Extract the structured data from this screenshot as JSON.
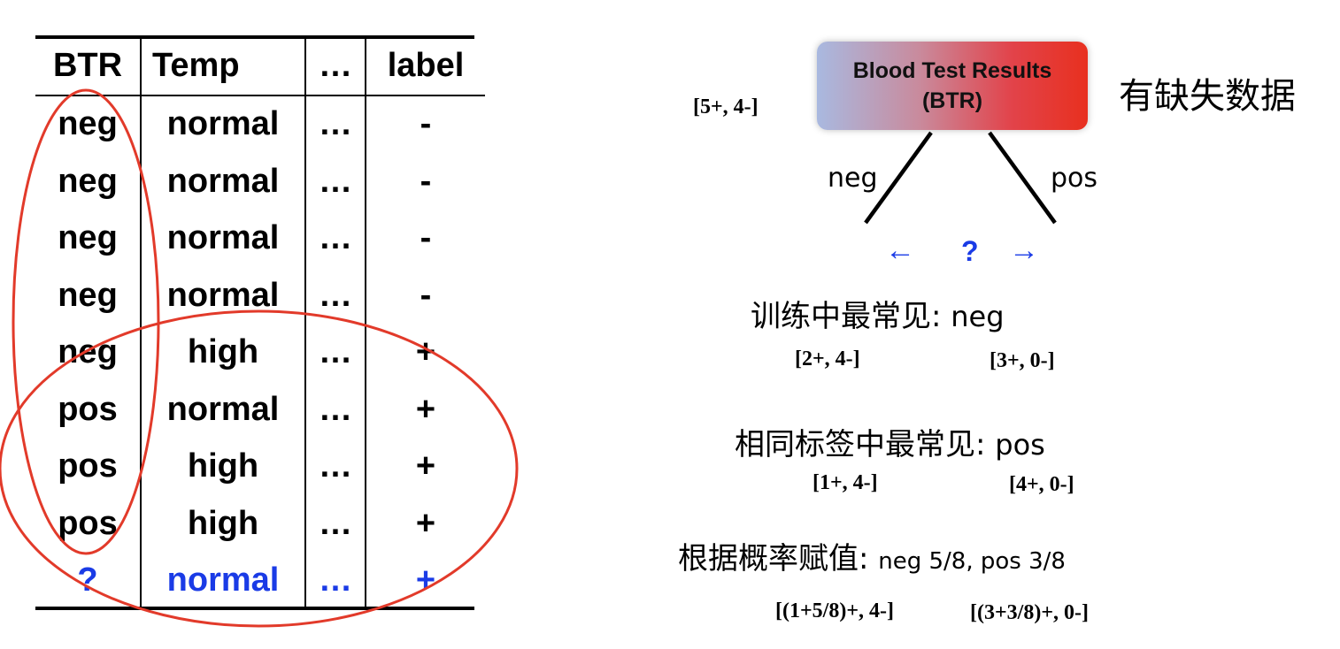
{
  "table": {
    "headers": [
      "BTR",
      "Temp",
      "…",
      "label"
    ],
    "rows": [
      [
        "neg",
        "normal",
        "…",
        "-"
      ],
      [
        "neg",
        "normal",
        "…",
        "-"
      ],
      [
        "neg",
        "normal",
        "…",
        "-"
      ],
      [
        "neg",
        "normal",
        "…",
        "-"
      ],
      [
        "neg",
        "high",
        "…",
        "+"
      ],
      [
        "pos",
        "normal",
        "…",
        "+"
      ],
      [
        "pos",
        "high",
        "…",
        "+"
      ],
      [
        "pos",
        "high",
        "…",
        "+"
      ],
      [
        "?",
        "normal",
        "…",
        "+"
      ]
    ]
  },
  "tree": {
    "node_line1": "Blood Test Results",
    "node_line2": "(BTR)",
    "root_counts": "[5+, 4-]",
    "missing_note": "有缺失数据",
    "left_branch": "neg",
    "right_branch": "pos",
    "arrow_left": "←",
    "question": "?",
    "arrow_right": "→"
  },
  "strategies": [
    {
      "label_cn": "训练中最常见: ",
      "label_value": "neg",
      "left_counts": "[2+, 4-]",
      "right_counts": "[3+, 0-]"
    },
    {
      "label_cn": "相同标签中最常见: ",
      "label_value": "pos",
      "left_counts": "[1+, 4-]",
      "right_counts": "[4+, 0-]"
    },
    {
      "label_cn": "根据概率赋值: ",
      "label_value": "neg 5/8, pos 3/8",
      "left_counts": "[(1+5/8)+, 4-]",
      "right_counts": "[(3+3/8)+, 0-]"
    }
  ],
  "colors": {
    "annotation_red": "#e23a2a",
    "missing_blue": "#1a3be6"
  }
}
